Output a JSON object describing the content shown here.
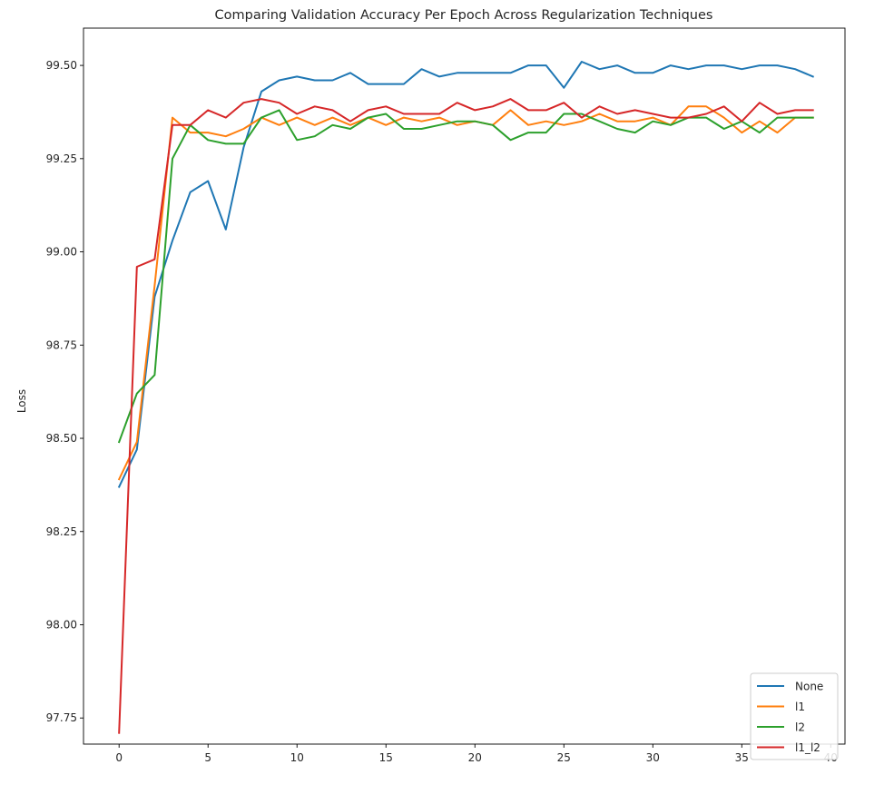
{
  "chart_data": {
    "type": "line",
    "title": "Comparing Validation Accuracy Per Epoch Across Regularization Techniques",
    "xlabel": "",
    "ylabel": "Loss",
    "xlim": [
      -2,
      40.8
    ],
    "ylim": [
      97.68,
      99.6
    ],
    "xticks": [
      0,
      5,
      10,
      15,
      20,
      25,
      30,
      35,
      40
    ],
    "yticks": [
      97.75,
      98.0,
      98.25,
      98.5,
      98.75,
      99.0,
      99.25,
      99.5
    ],
    "ytick_labels": [
      "97.75",
      "98.00",
      "98.25",
      "98.50",
      "98.75",
      "99.00",
      "99.25",
      "99.50"
    ],
    "grid": false,
    "legend_position": "lower-right",
    "x": [
      0,
      1,
      2,
      3,
      4,
      5,
      6,
      7,
      8,
      9,
      10,
      11,
      12,
      13,
      14,
      15,
      16,
      17,
      18,
      19,
      20,
      21,
      22,
      23,
      24,
      25,
      26,
      27,
      28,
      29,
      30,
      31,
      32,
      33,
      34,
      35,
      36,
      37,
      38,
      39
    ],
    "series": [
      {
        "name": "None",
        "color": "#1f77b4",
        "values": [
          98.37,
          98.47,
          98.88,
          99.03,
          99.16,
          99.19,
          99.06,
          99.28,
          99.43,
          99.46,
          99.47,
          99.46,
          99.46,
          99.48,
          99.45,
          99.45,
          99.45,
          99.49,
          99.47,
          99.48,
          99.48,
          99.48,
          99.48,
          99.5,
          99.5,
          99.44,
          99.51,
          99.49,
          99.5,
          99.48,
          99.48,
          99.5,
          99.49,
          99.5,
          99.5,
          99.49,
          99.5,
          99.5,
          99.49,
          99.47
        ]
      },
      {
        "name": "l1",
        "color": "#ff7f0e",
        "values": [
          98.39,
          98.49,
          98.91,
          99.36,
          99.32,
          99.32,
          99.31,
          99.33,
          99.36,
          99.34,
          99.36,
          99.34,
          99.36,
          99.34,
          99.36,
          99.34,
          99.36,
          99.35,
          99.36,
          99.34,
          99.35,
          99.34,
          99.38,
          99.34,
          99.35,
          99.34,
          99.35,
          99.37,
          99.35,
          99.35,
          99.36,
          99.34,
          99.39,
          99.39,
          99.36,
          99.32,
          99.35,
          99.32,
          99.36,
          99.36
        ]
      },
      {
        "name": "l2",
        "color": "#2ca02c",
        "values": [
          98.49,
          98.62,
          98.67,
          99.25,
          99.34,
          99.3,
          99.29,
          99.29,
          99.36,
          99.38,
          99.3,
          99.31,
          99.34,
          99.33,
          99.36,
          99.37,
          99.33,
          99.33,
          99.34,
          99.35,
          99.35,
          99.34,
          99.3,
          99.32,
          99.32,
          99.37,
          99.37,
          99.35,
          99.33,
          99.32,
          99.35,
          99.34,
          99.36,
          99.36,
          99.33,
          99.35,
          99.32,
          99.36,
          99.36,
          99.36
        ]
      },
      {
        "name": "l1_l2",
        "color": "#d62728",
        "values": [
          97.71,
          98.96,
          98.98,
          99.34,
          99.34,
          99.38,
          99.36,
          99.4,
          99.41,
          99.4,
          99.37,
          99.39,
          99.38,
          99.35,
          99.38,
          99.39,
          99.37,
          99.37,
          99.37,
          99.4,
          99.38,
          99.39,
          99.41,
          99.38,
          99.38,
          99.4,
          99.36,
          99.39,
          99.37,
          99.38,
          99.37,
          99.36,
          99.36,
          99.37,
          99.39,
          99.35,
          99.4,
          99.37,
          99.38,
          99.38
        ]
      }
    ]
  }
}
